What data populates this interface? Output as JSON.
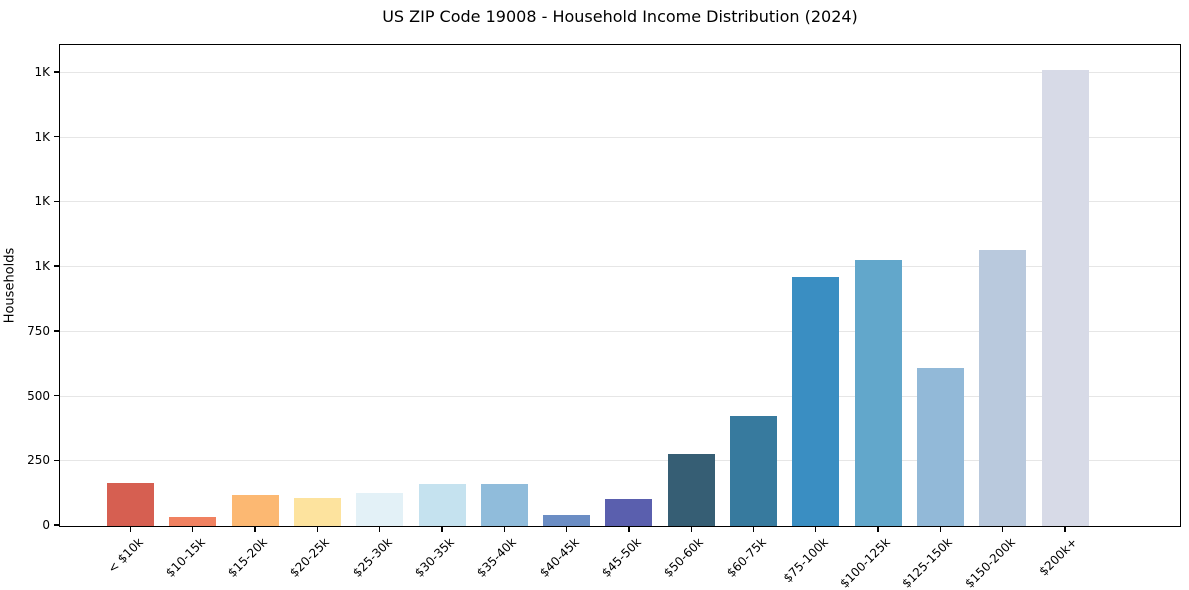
{
  "chart_data": {
    "type": "bar",
    "title": "US ZIP Code 19008 - Household Income Distribution (2024)",
    "xlabel": "",
    "ylabel": "Households",
    "ylim": [
      0,
      1854
    ],
    "grid": true,
    "legend": null,
    "categories": [
      "< $10k",
      "$10-15k",
      "$15-20k",
      "$20-25k",
      "$25-30k",
      "$30-35k",
      "$35-40k",
      "$40-45k",
      "$45-50k",
      "$50-60k",
      "$60-75k",
      "$75-100k",
      "$100-125k",
      "$125-150k",
      "$150-200k",
      "$200k+"
    ],
    "values": [
      168,
      36,
      119,
      107,
      129,
      162,
      162,
      42,
      104,
      277,
      424,
      963,
      1029,
      609,
      1067,
      1763
    ],
    "bar_colors": [
      "#d65f51",
      "#f08160",
      "#fcb872",
      "#fde39e",
      "#e3f1f7",
      "#c5e2ef",
      "#90bcdb",
      "#6b8dc4",
      "#5a5fae",
      "#365e74",
      "#377a9e",
      "#3a8ec2",
      "#62a7cb",
      "#92b9d8",
      "#b9c9dd",
      "#d7dae7"
    ],
    "yticks": [
      {
        "value": 0,
        "label": "0"
      },
      {
        "value": 250,
        "label": "250"
      },
      {
        "value": 500,
        "label": "500"
      },
      {
        "value": 750,
        "label": "750"
      },
      {
        "value": 1000,
        "label": "1K"
      },
      {
        "value": 1250,
        "label": "1K"
      },
      {
        "value": 1500,
        "label": "1K"
      },
      {
        "value": 1750,
        "label": "1K"
      }
    ],
    "gridline_color": "#e6e6e6",
    "background_color": "#ffffff"
  }
}
